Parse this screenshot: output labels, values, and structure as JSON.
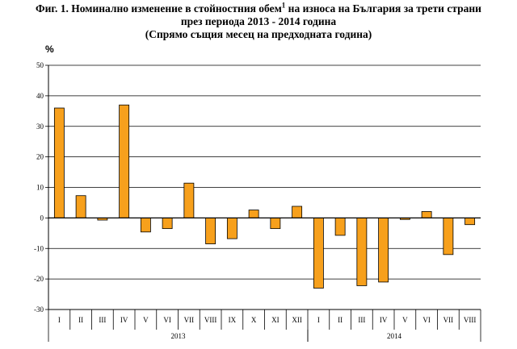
{
  "header": {
    "title_part1": "Фиг. 1. Номинално изменение в стойностния обем",
    "title_sup": "1",
    "title_part2": " на износа на България за трети страни",
    "title_line2": "през периода 2013 - 2014 година",
    "title_line3": "(Спрямо същия месец на предходната година)"
  },
  "chart_data": {
    "type": "bar",
    "ylabel": "%",
    "ylim": [
      -30,
      50
    ],
    "yticks": [
      -30,
      -20,
      -10,
      0,
      10,
      20,
      30,
      40,
      50
    ],
    "grid": true,
    "legend": "none",
    "bar_color": "#f7a01c",
    "categories": [
      "I",
      "II",
      "III",
      "IV",
      "V",
      "VI",
      "VII",
      "VIII",
      "IX",
      "X",
      "XI",
      "XII",
      "I",
      "II",
      "III",
      "IV",
      "V",
      "VI",
      "VII",
      "VIII"
    ],
    "values": [
      36.0,
      7.3,
      -0.7,
      37.0,
      -4.6,
      -3.5,
      11.4,
      -8.5,
      -6.8,
      2.6,
      -3.5,
      3.8,
      -23.0,
      -5.7,
      -22.2,
      -21.0,
      -0.5,
      2.1,
      -12.0,
      -2.2
    ],
    "groups": [
      {
        "label": "2013",
        "start": 0,
        "count": 12
      },
      {
        "label": "2014",
        "start": 12,
        "count": 8
      }
    ]
  }
}
